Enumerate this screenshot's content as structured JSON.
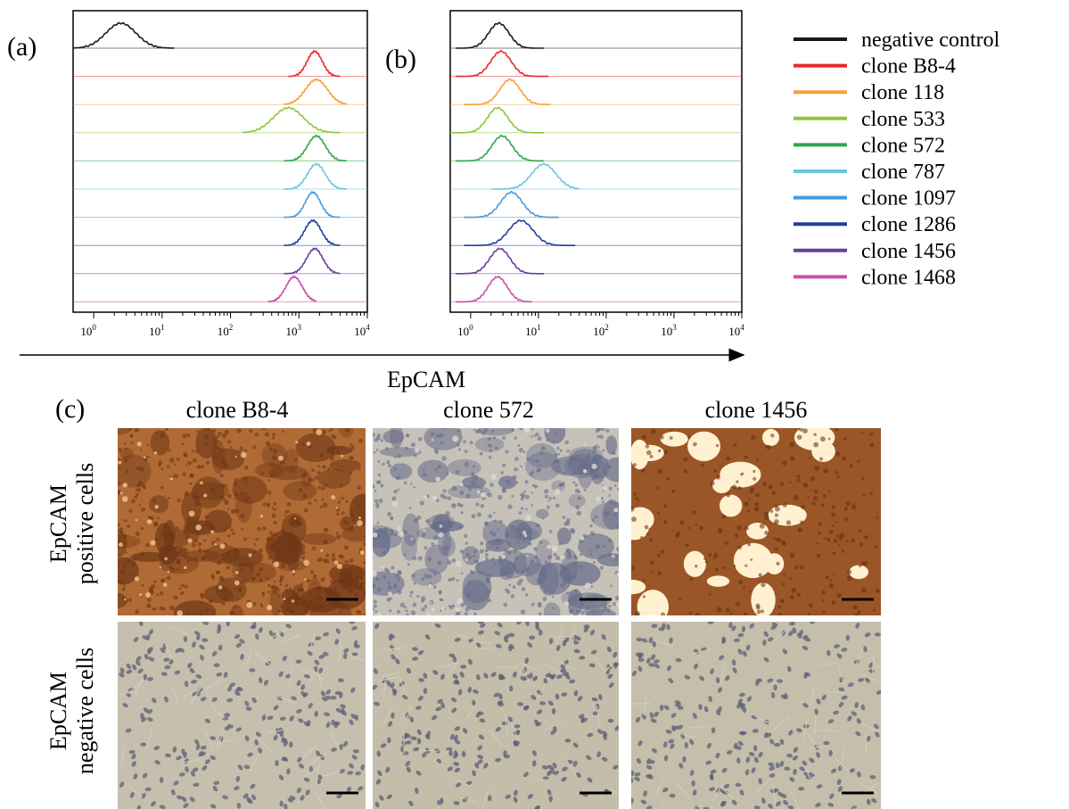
{
  "panels": {
    "a": {
      "label": "(a)"
    },
    "b": {
      "label": "(b)"
    },
    "c": {
      "label": "(c)"
    }
  },
  "x_axis_title": "EpCAM",
  "chart_data": [
    {
      "type": "line",
      "title": "",
      "x_scale": "log",
      "xlim": [
        0.5,
        10000
      ],
      "x_ticks": [
        {
          "base": "10",
          "exp": "0",
          "value": 1
        },
        {
          "base": "10",
          "exp": "1",
          "value": 10
        },
        {
          "base": "10",
          "exp": "2",
          "value": 100
        },
        {
          "base": "10",
          "exp": "3",
          "value": 1000
        },
        {
          "base": "10",
          "exp": "4",
          "value": 10000
        }
      ],
      "xlabel": "EpCAM",
      "ylabel": "",
      "series": [
        {
          "name": "negative control",
          "color": "#1a1a1a",
          "peak": 2.5,
          "width": 0.22,
          "range": [
            0.5,
            15
          ]
        },
        {
          "name": "clone B8-4",
          "color": "#e8282e",
          "peak": 1700,
          "width": 0.11,
          "range": [
            700,
            4000
          ]
        },
        {
          "name": "clone 118",
          "color": "#f4a13a",
          "peak": 1800,
          "width": 0.16,
          "range": [
            600,
            5000
          ]
        },
        {
          "name": "clone 533",
          "color": "#8cc63f",
          "peak": 700,
          "width": 0.22,
          "range": [
            150,
            4000
          ]
        },
        {
          "name": "clone 572",
          "color": "#2ea84a",
          "peak": 1800,
          "width": 0.13,
          "range": [
            600,
            5000
          ]
        },
        {
          "name": "clone 787",
          "color": "#6cc5dc",
          "peak": 1800,
          "width": 0.13,
          "range": [
            600,
            5000
          ]
        },
        {
          "name": "clone 1097",
          "color": "#4a9ad8",
          "peak": 1600,
          "width": 0.11,
          "range": [
            600,
            4000
          ]
        },
        {
          "name": "clone 1286",
          "color": "#1f3f99",
          "peak": 1600,
          "width": 0.12,
          "range": [
            600,
            4000
          ]
        },
        {
          "name": "clone 1456",
          "color": "#6a3f9c",
          "peak": 1700,
          "width": 0.12,
          "range": [
            600,
            4000
          ]
        },
        {
          "name": "clone 1468",
          "color": "#c94fa8",
          "peak": 850,
          "width": 0.12,
          "range": [
            350,
            1800
          ]
        }
      ]
    },
    {
      "type": "line",
      "title": "",
      "x_scale": "log",
      "xlim": [
        0.5,
        10000
      ],
      "x_ticks": [
        {
          "base": "10",
          "exp": "0",
          "value": 1
        },
        {
          "base": "10",
          "exp": "1",
          "value": 10
        },
        {
          "base": "10",
          "exp": "2",
          "value": 100
        },
        {
          "base": "10",
          "exp": "3",
          "value": 1000
        },
        {
          "base": "10",
          "exp": "4",
          "value": 10000
        }
      ],
      "xlabel": "EpCAM",
      "ylabel": "",
      "series": [
        {
          "name": "negative control",
          "color": "#1a1a1a",
          "peak": 2.6,
          "width": 0.15,
          "range": [
            0.6,
            12
          ]
        },
        {
          "name": "clone B8-4",
          "color": "#e8282e",
          "peak": 2.8,
          "width": 0.15,
          "range": [
            0.6,
            14
          ]
        },
        {
          "name": "clone 118",
          "color": "#f4a13a",
          "peak": 3.8,
          "width": 0.15,
          "range": [
            0.8,
            15
          ]
        },
        {
          "name": "clone 533",
          "color": "#8cc63f",
          "peak": 2.5,
          "width": 0.15,
          "range": [
            0.5,
            12
          ]
        },
        {
          "name": "clone 572",
          "color": "#2ea84a",
          "peak": 2.9,
          "width": 0.15,
          "range": [
            0.6,
            12
          ]
        },
        {
          "name": "clone 787",
          "color": "#6cc5dc",
          "peak": 12,
          "width": 0.18,
          "range": [
            2,
            40
          ]
        },
        {
          "name": "clone 1097",
          "color": "#4a9ad8",
          "peak": 4,
          "width": 0.16,
          "range": [
            0.8,
            20
          ]
        },
        {
          "name": "clone 1286",
          "color": "#1f3f99",
          "peak": 5.5,
          "width": 0.18,
          "range": [
            0.8,
            35
          ]
        },
        {
          "name": "clone 1456",
          "color": "#6a3f9c",
          "peak": 2.7,
          "width": 0.15,
          "range": [
            0.6,
            12
          ]
        },
        {
          "name": "clone 1468",
          "color": "#c94fa8",
          "peak": 2.5,
          "width": 0.14,
          "range": [
            0.6,
            8
          ]
        }
      ]
    }
  ],
  "legend": {
    "items": [
      {
        "label": "negative control",
        "color": "#1a1a1a"
      },
      {
        "label": "clone B8-4",
        "color": "#e8282e"
      },
      {
        "label": "clone 118",
        "color": "#f4a13a"
      },
      {
        "label": "clone 533",
        "color": "#8cc63f"
      },
      {
        "label": "clone 572",
        "color": "#2ea84a"
      },
      {
        "label": "clone 787",
        "color": "#6cc5dc"
      },
      {
        "label": "clone 1097",
        "color": "#4a9ad8"
      },
      {
        "label": "clone 1286",
        "color": "#1f3f99"
      },
      {
        "label": "clone 1456",
        "color": "#6a3f9c"
      },
      {
        "label": "clone 1468",
        "color": "#c94fa8"
      }
    ]
  },
  "micrographs": {
    "columns": [
      "clone B8-4",
      "clone 572",
      "clone 1456"
    ],
    "rows": [
      {
        "line1": "EpCAM",
        "line2": "positive cells"
      },
      {
        "line1": "EpCAM",
        "line2": "negative cells"
      }
    ],
    "tiles": [
      {
        "bg": "#b06a35",
        "dot": "#6e3716",
        "light": "#f1c58f",
        "kind": "dense"
      },
      {
        "bg": "#c7c2b8",
        "dot": "#676c8a",
        "light": "#dedad0",
        "kind": "dense"
      },
      {
        "bg": "#9b5628",
        "dot": "#5f2f12",
        "light": "#fff1cf",
        "kind": "islands"
      },
      {
        "bg": "#c6bfad",
        "dot": "#5d6177",
        "light": "#d6d1c1",
        "kind": "sparse"
      },
      {
        "bg": "#c4bda9",
        "dot": "#5b5f75",
        "light": "#d3cebd",
        "kind": "sparse"
      },
      {
        "bg": "#c5beab",
        "dot": "#5c6077",
        "light": "#d4cfbe",
        "kind": "sparse"
      }
    ]
  }
}
